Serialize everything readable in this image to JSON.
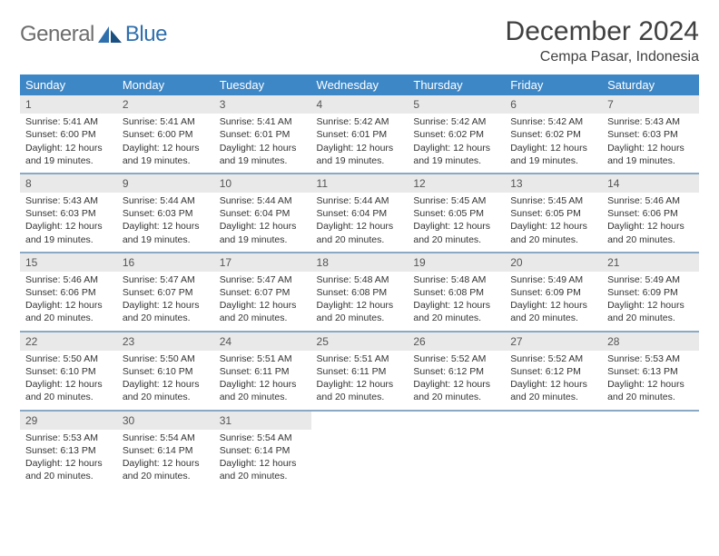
{
  "brand": {
    "word1": "General",
    "word2": "Blue"
  },
  "title": "December 2024",
  "location": "Cempa Pasar, Indonesia",
  "colors": {
    "header_bg": "#3d87c7",
    "header_text": "#ffffff",
    "daynum_bg": "#e9e9e9",
    "row_divider": "#8aa9c4",
    "title_text": "#404040",
    "body_text": "#333333",
    "logo_grey": "#6d6d6d",
    "logo_blue": "#2f6fad"
  },
  "weekdays": [
    "Sunday",
    "Monday",
    "Tuesday",
    "Wednesday",
    "Thursday",
    "Friday",
    "Saturday"
  ],
  "weeks": [
    [
      {
        "n": "1",
        "sr": "5:41 AM",
        "ss": "6:00 PM",
        "dlA": "12 hours",
        "dlB": "and 19 minutes."
      },
      {
        "n": "2",
        "sr": "5:41 AM",
        "ss": "6:00 PM",
        "dlA": "12 hours",
        "dlB": "and 19 minutes."
      },
      {
        "n": "3",
        "sr": "5:41 AM",
        "ss": "6:01 PM",
        "dlA": "12 hours",
        "dlB": "and 19 minutes."
      },
      {
        "n": "4",
        "sr": "5:42 AM",
        "ss": "6:01 PM",
        "dlA": "12 hours",
        "dlB": "and 19 minutes."
      },
      {
        "n": "5",
        "sr": "5:42 AM",
        "ss": "6:02 PM",
        "dlA": "12 hours",
        "dlB": "and 19 minutes."
      },
      {
        "n": "6",
        "sr": "5:42 AM",
        "ss": "6:02 PM",
        "dlA": "12 hours",
        "dlB": "and 19 minutes."
      },
      {
        "n": "7",
        "sr": "5:43 AM",
        "ss": "6:03 PM",
        "dlA": "12 hours",
        "dlB": "and 19 minutes."
      }
    ],
    [
      {
        "n": "8",
        "sr": "5:43 AM",
        "ss": "6:03 PM",
        "dlA": "12 hours",
        "dlB": "and 19 minutes."
      },
      {
        "n": "9",
        "sr": "5:44 AM",
        "ss": "6:03 PM",
        "dlA": "12 hours",
        "dlB": "and 19 minutes."
      },
      {
        "n": "10",
        "sr": "5:44 AM",
        "ss": "6:04 PM",
        "dlA": "12 hours",
        "dlB": "and 19 minutes."
      },
      {
        "n": "11",
        "sr": "5:44 AM",
        "ss": "6:04 PM",
        "dlA": "12 hours",
        "dlB": "and 20 minutes."
      },
      {
        "n": "12",
        "sr": "5:45 AM",
        "ss": "6:05 PM",
        "dlA": "12 hours",
        "dlB": "and 20 minutes."
      },
      {
        "n": "13",
        "sr": "5:45 AM",
        "ss": "6:05 PM",
        "dlA": "12 hours",
        "dlB": "and 20 minutes."
      },
      {
        "n": "14",
        "sr": "5:46 AM",
        "ss": "6:06 PM",
        "dlA": "12 hours",
        "dlB": "and 20 minutes."
      }
    ],
    [
      {
        "n": "15",
        "sr": "5:46 AM",
        "ss": "6:06 PM",
        "dlA": "12 hours",
        "dlB": "and 20 minutes."
      },
      {
        "n": "16",
        "sr": "5:47 AM",
        "ss": "6:07 PM",
        "dlA": "12 hours",
        "dlB": "and 20 minutes."
      },
      {
        "n": "17",
        "sr": "5:47 AM",
        "ss": "6:07 PM",
        "dlA": "12 hours",
        "dlB": "and 20 minutes."
      },
      {
        "n": "18",
        "sr": "5:48 AM",
        "ss": "6:08 PM",
        "dlA": "12 hours",
        "dlB": "and 20 minutes."
      },
      {
        "n": "19",
        "sr": "5:48 AM",
        "ss": "6:08 PM",
        "dlA": "12 hours",
        "dlB": "and 20 minutes."
      },
      {
        "n": "20",
        "sr": "5:49 AM",
        "ss": "6:09 PM",
        "dlA": "12 hours",
        "dlB": "and 20 minutes."
      },
      {
        "n": "21",
        "sr": "5:49 AM",
        "ss": "6:09 PM",
        "dlA": "12 hours",
        "dlB": "and 20 minutes."
      }
    ],
    [
      {
        "n": "22",
        "sr": "5:50 AM",
        "ss": "6:10 PM",
        "dlA": "12 hours",
        "dlB": "and 20 minutes."
      },
      {
        "n": "23",
        "sr": "5:50 AM",
        "ss": "6:10 PM",
        "dlA": "12 hours",
        "dlB": "and 20 minutes."
      },
      {
        "n": "24",
        "sr": "5:51 AM",
        "ss": "6:11 PM",
        "dlA": "12 hours",
        "dlB": "and 20 minutes."
      },
      {
        "n": "25",
        "sr": "5:51 AM",
        "ss": "6:11 PM",
        "dlA": "12 hours",
        "dlB": "and 20 minutes."
      },
      {
        "n": "26",
        "sr": "5:52 AM",
        "ss": "6:12 PM",
        "dlA": "12 hours",
        "dlB": "and 20 minutes."
      },
      {
        "n": "27",
        "sr": "5:52 AM",
        "ss": "6:12 PM",
        "dlA": "12 hours",
        "dlB": "and 20 minutes."
      },
      {
        "n": "28",
        "sr": "5:53 AM",
        "ss": "6:13 PM",
        "dlA": "12 hours",
        "dlB": "and 20 minutes."
      }
    ],
    [
      {
        "n": "29",
        "sr": "5:53 AM",
        "ss": "6:13 PM",
        "dlA": "12 hours",
        "dlB": "and 20 minutes."
      },
      {
        "n": "30",
        "sr": "5:54 AM",
        "ss": "6:14 PM",
        "dlA": "12 hours",
        "dlB": "and 20 minutes."
      },
      {
        "n": "31",
        "sr": "5:54 AM",
        "ss": "6:14 PM",
        "dlA": "12 hours",
        "dlB": "and 20 minutes."
      },
      null,
      null,
      null,
      null
    ]
  ],
  "labels": {
    "sunrise": "Sunrise: ",
    "sunset": "Sunset: ",
    "daylight": "Daylight: "
  }
}
